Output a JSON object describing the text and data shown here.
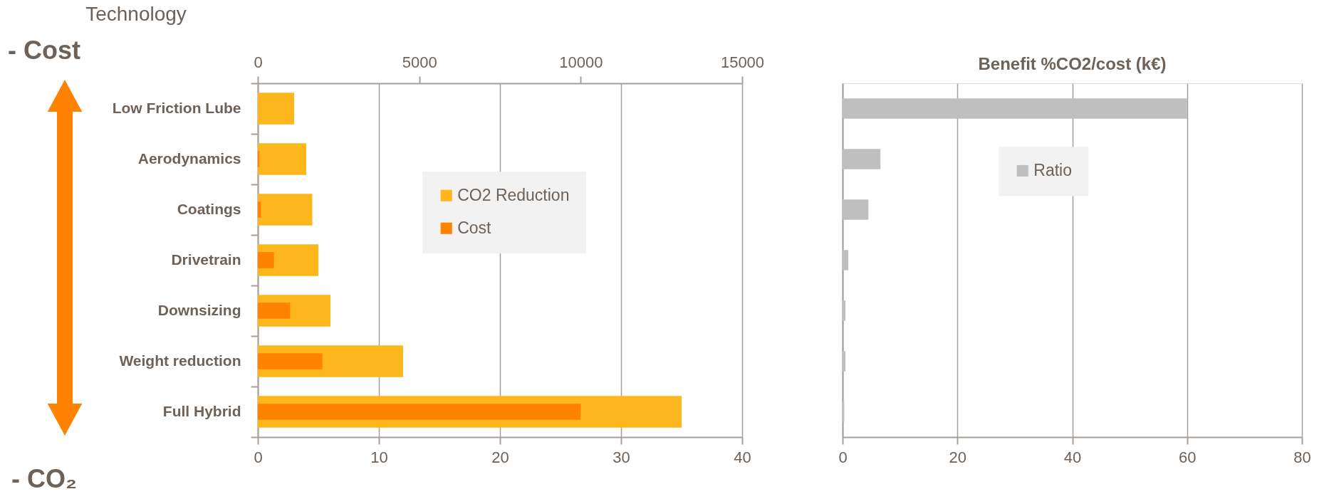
{
  "chart_data": [
    {
      "type": "bar",
      "orientation": "horizontal",
      "ylabel": "Technology",
      "annotations": [
        "- Cost",
        "- CO₂"
      ],
      "categories": [
        "Low Friction Lube",
        "Aerodynamics",
        "Coatings",
        "Drivetrain",
        "Downsizing",
        "Weight reduction",
        "Full Hybrid"
      ],
      "series": [
        {
          "name": "CO2 Reduction",
          "color": "#fdb71d",
          "values": [
            3,
            4,
            4.5,
            5,
            6,
            12,
            35
          ]
        },
        {
          "name": "Cost",
          "color": "#ff8200",
          "axis": "x2",
          "values": [
            0,
            50,
            100,
            500,
            1000,
            2000,
            10000
          ]
        }
      ],
      "xlim": [
        0,
        40
      ],
      "xticks": [
        0,
        10,
        20,
        30,
        40
      ],
      "x2lim": [
        0,
        15000
      ],
      "x2ticks": [
        0,
        5000,
        10000,
        15000
      ],
      "grid": "x",
      "legend": "center"
    },
    {
      "type": "bar",
      "orientation": "horizontal",
      "title": "Benefit %CO2/cost (k€)",
      "categories": [
        null,
        null,
        null,
        null,
        null,
        null,
        null
      ],
      "tick_labels": "x",
      "series": [
        {
          "name": "Ratio",
          "color": "#bfbfbf",
          "values": [
            60,
            6.6,
            4.5,
            1,
            0.5,
            0.5,
            0.3
          ]
        }
      ],
      "xlim": [
        0,
        80
      ],
      "xticks": [
        0,
        20,
        40,
        60,
        80
      ],
      "grid": "x",
      "legend": "top"
    }
  ]
}
